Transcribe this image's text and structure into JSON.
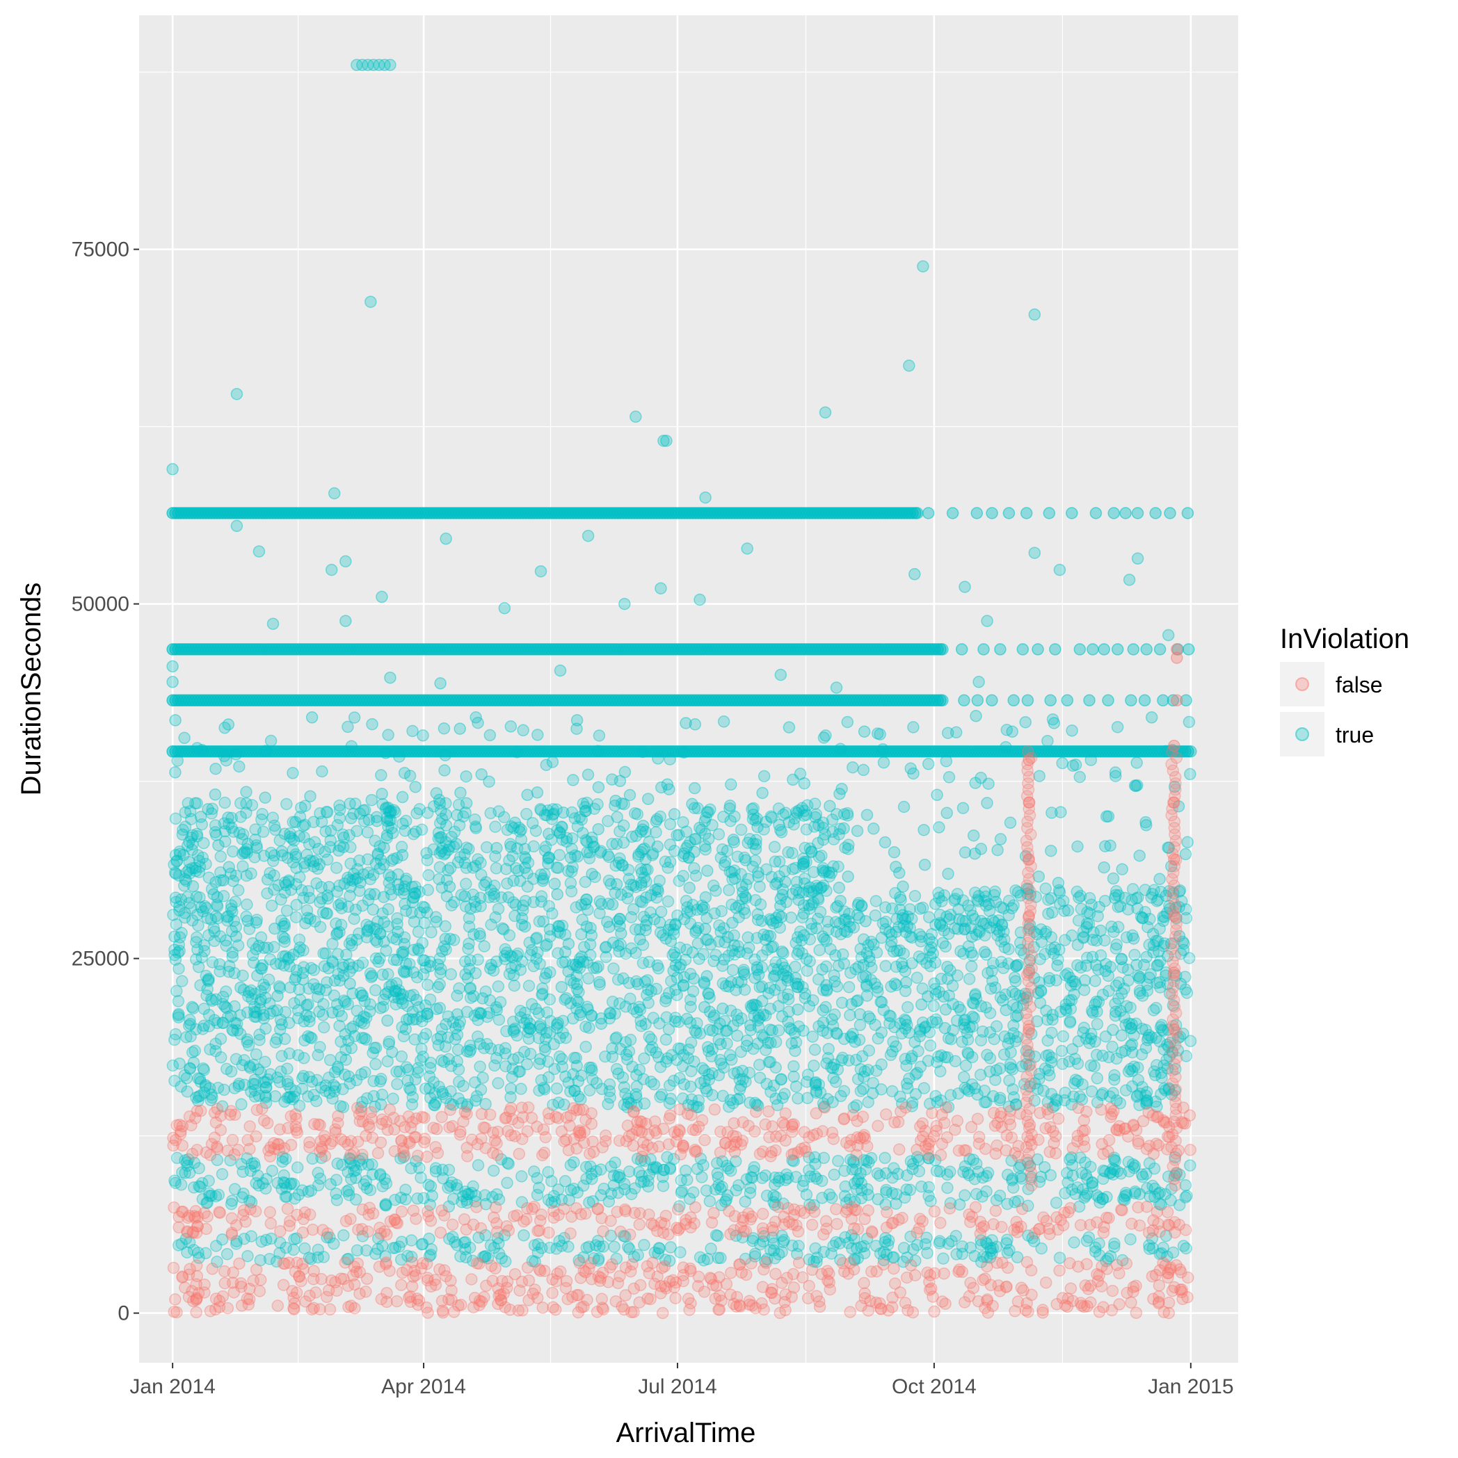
{
  "chart_data": {
    "type": "scatter",
    "xlabel": "ArrivalTime",
    "ylabel": "DurationSeconds",
    "x_ticks": [
      "Jan 2014",
      "Apr 2014",
      "Jul 2014",
      "Oct 2014",
      "Jan 2015"
    ],
    "x_tick_dates": [
      "2014-01-01",
      "2014-04-01",
      "2014-07-01",
      "2014-10-01",
      "2015-01-01"
    ],
    "x_range": [
      "2013-12-20",
      "2015-01-18"
    ],
    "y_ticks": [
      "0",
      "25000",
      "50000",
      "75000"
    ],
    "y_tick_values": [
      0,
      25000,
      50000,
      75000
    ],
    "ylim": [
      -3500,
      91500
    ],
    "grid": true,
    "legend": {
      "title": "InViolation",
      "position": "right",
      "entries": [
        {
          "label": "false",
          "color": "#F8766D"
        },
        {
          "label": "true",
          "color": "#00BFC4"
        }
      ]
    },
    "series": [
      {
        "name": "false",
        "color": "#F8766D",
        "opacity": 0.25,
        "bands": [
          {
            "x_start": "2014-01-01",
            "x_end": "2015-01-01",
            "y_min": 0,
            "y_max": 3600
          },
          {
            "x_start": "2014-01-01",
            "x_end": "2015-01-01",
            "y_min": 5500,
            "y_max": 7500
          },
          {
            "x_start": "2014-01-01",
            "x_end": "2015-01-01",
            "y_min": 11000,
            "y_max": 14500
          }
        ],
        "points": [
          {
            "x": "2014-11-04",
            "y": 20000
          },
          {
            "x": "2014-11-04",
            "y": 24000
          },
          {
            "x": "2014-11-04",
            "y": 28000
          },
          {
            "x": "2014-11-04",
            "y": 32000
          },
          {
            "x": "2014-11-04",
            "y": 36000
          },
          {
            "x": "2014-11-04",
            "y": 39000
          },
          {
            "x": "2014-12-26",
            "y": 20000
          },
          {
            "x": "2014-12-26",
            "y": 24000
          },
          {
            "x": "2014-12-26",
            "y": 28000
          },
          {
            "x": "2014-12-26",
            "y": 32000
          },
          {
            "x": "2014-12-26",
            "y": 36000
          },
          {
            "x": "2014-12-26",
            "y": 40000
          },
          {
            "x": "2014-12-27",
            "y": 43200
          },
          {
            "x": "2014-12-27",
            "y": 46800
          },
          {
            "x": "2014-12-27",
            "y": 46200
          }
        ]
      },
      {
        "name": "true",
        "color": "#00BFC4",
        "opacity": 0.25,
        "bands": [
          {
            "x_start": "2014-01-01",
            "x_end": "2015-01-01",
            "y_min": 3600,
            "y_max": 5500
          },
          {
            "x_start": "2014-01-01",
            "x_end": "2015-01-01",
            "y_min": 7500,
            "y_max": 11000
          },
          {
            "x_start": "2014-01-01",
            "x_end": "2015-01-01",
            "y_min": 14500,
            "y_max": 20000
          },
          {
            "x_start": "2014-01-01",
            "x_end": "2014-09-01",
            "y_min": 20000,
            "y_max": 36000
          },
          {
            "x_start": "2014-09-01",
            "x_end": "2015-01-01",
            "y_min": 20000,
            "y_max": 30000
          }
        ],
        "lines": [
          {
            "x_start": "2014-01-01",
            "x_end": "2015-01-01",
            "y": 39600
          },
          {
            "x_start": "2014-01-01",
            "x_end": "2014-10-04",
            "y": 43200
          },
          {
            "x_start": "2014-01-01",
            "x_end": "2014-10-04",
            "y": 46800
          },
          {
            "x_start": "2014-01-01",
            "x_end": "2014-09-25",
            "y": 56400
          }
        ],
        "points": [
          {
            "x": "2014-03-08",
            "y": 88000
          },
          {
            "x": "2014-03-10",
            "y": 88000
          },
          {
            "x": "2014-03-12",
            "y": 88000
          },
          {
            "x": "2014-03-14",
            "y": 88000
          },
          {
            "x": "2014-03-16",
            "y": 88000
          },
          {
            "x": "2014-03-18",
            "y": 88000
          },
          {
            "x": "2014-03-20",
            "y": 88000
          },
          {
            "x": "2014-09-27",
            "y": 73800
          },
          {
            "x": "2014-03-13",
            "y": 71300
          },
          {
            "x": "2014-11-06",
            "y": 70400
          },
          {
            "x": "2014-09-22",
            "y": 66800
          },
          {
            "x": "2014-01-24",
            "y": 64800
          },
          {
            "x": "2014-06-16",
            "y": 63200
          },
          {
            "x": "2014-08-23",
            "y": 63500
          },
          {
            "x": "2014-06-26",
            "y": 61500
          },
          {
            "x": "2014-06-27",
            "y": 61500
          },
          {
            "x": "2014-01-01",
            "y": 59500
          },
          {
            "x": "2014-02-28",
            "y": 57800
          },
          {
            "x": "2014-07-11",
            "y": 57500
          },
          {
            "x": "2014-01-24",
            "y": 55500
          },
          {
            "x": "2014-02-01",
            "y": 53700
          },
          {
            "x": "2014-03-04",
            "y": 53000
          },
          {
            "x": "2014-02-27",
            "y": 52400
          },
          {
            "x": "2014-05-13",
            "y": 52300
          },
          {
            "x": "2014-09-24",
            "y": 52100
          },
          {
            "x": "2014-10-12",
            "y": 51200
          },
          {
            "x": "2014-11-15",
            "y": 52400
          },
          {
            "x": "2014-12-10",
            "y": 51700
          },
          {
            "x": "2014-04-09",
            "y": 54600
          },
          {
            "x": "2014-05-30",
            "y": 54800
          },
          {
            "x": "2014-07-26",
            "y": 53900
          },
          {
            "x": "2014-11-06",
            "y": 53600
          },
          {
            "x": "2014-12-13",
            "y": 53200
          },
          {
            "x": "2014-02-06",
            "y": 48600
          },
          {
            "x": "2014-03-04",
            "y": 48800
          },
          {
            "x": "2014-03-17",
            "y": 50500
          },
          {
            "x": "2014-04-30",
            "y": 49700
          },
          {
            "x": "2014-06-12",
            "y": 50000
          },
          {
            "x": "2014-06-25",
            "y": 51100
          },
          {
            "x": "2014-07-09",
            "y": 50300
          },
          {
            "x": "2014-10-20",
            "y": 48800
          },
          {
            "x": "2014-12-24",
            "y": 47800
          },
          {
            "x": "2014-01-01",
            "y": 45600
          },
          {
            "x": "2014-01-01",
            "y": 44500
          },
          {
            "x": "2014-03-20",
            "y": 44800
          },
          {
            "x": "2014-04-07",
            "y": 44400
          },
          {
            "x": "2014-05-20",
            "y": 45300
          },
          {
            "x": "2014-08-07",
            "y": 45000
          },
          {
            "x": "2014-08-27",
            "y": 44100
          },
          {
            "x": "2014-10-17",
            "y": 44500
          },
          {
            "x": "2014-01-02",
            "y": 41800
          },
          {
            "x": "2014-01-21",
            "y": 41500
          },
          {
            "x": "2014-02-20",
            "y": 42000
          },
          {
            "x": "2014-04-14",
            "y": 41200
          },
          {
            "x": "2014-05-26",
            "y": 41800
          },
          {
            "x": "2014-07-04",
            "y": 41600
          },
          {
            "x": "2014-08-10",
            "y": 41300
          },
          {
            "x": "2014-09-06",
            "y": 41000
          },
          {
            "x": "2014-10-16",
            "y": 42100
          },
          {
            "x": "2014-11-13",
            "y": 41600
          },
          {
            "x": "2014-12-18",
            "y": 42000
          }
        ]
      }
    ]
  }
}
